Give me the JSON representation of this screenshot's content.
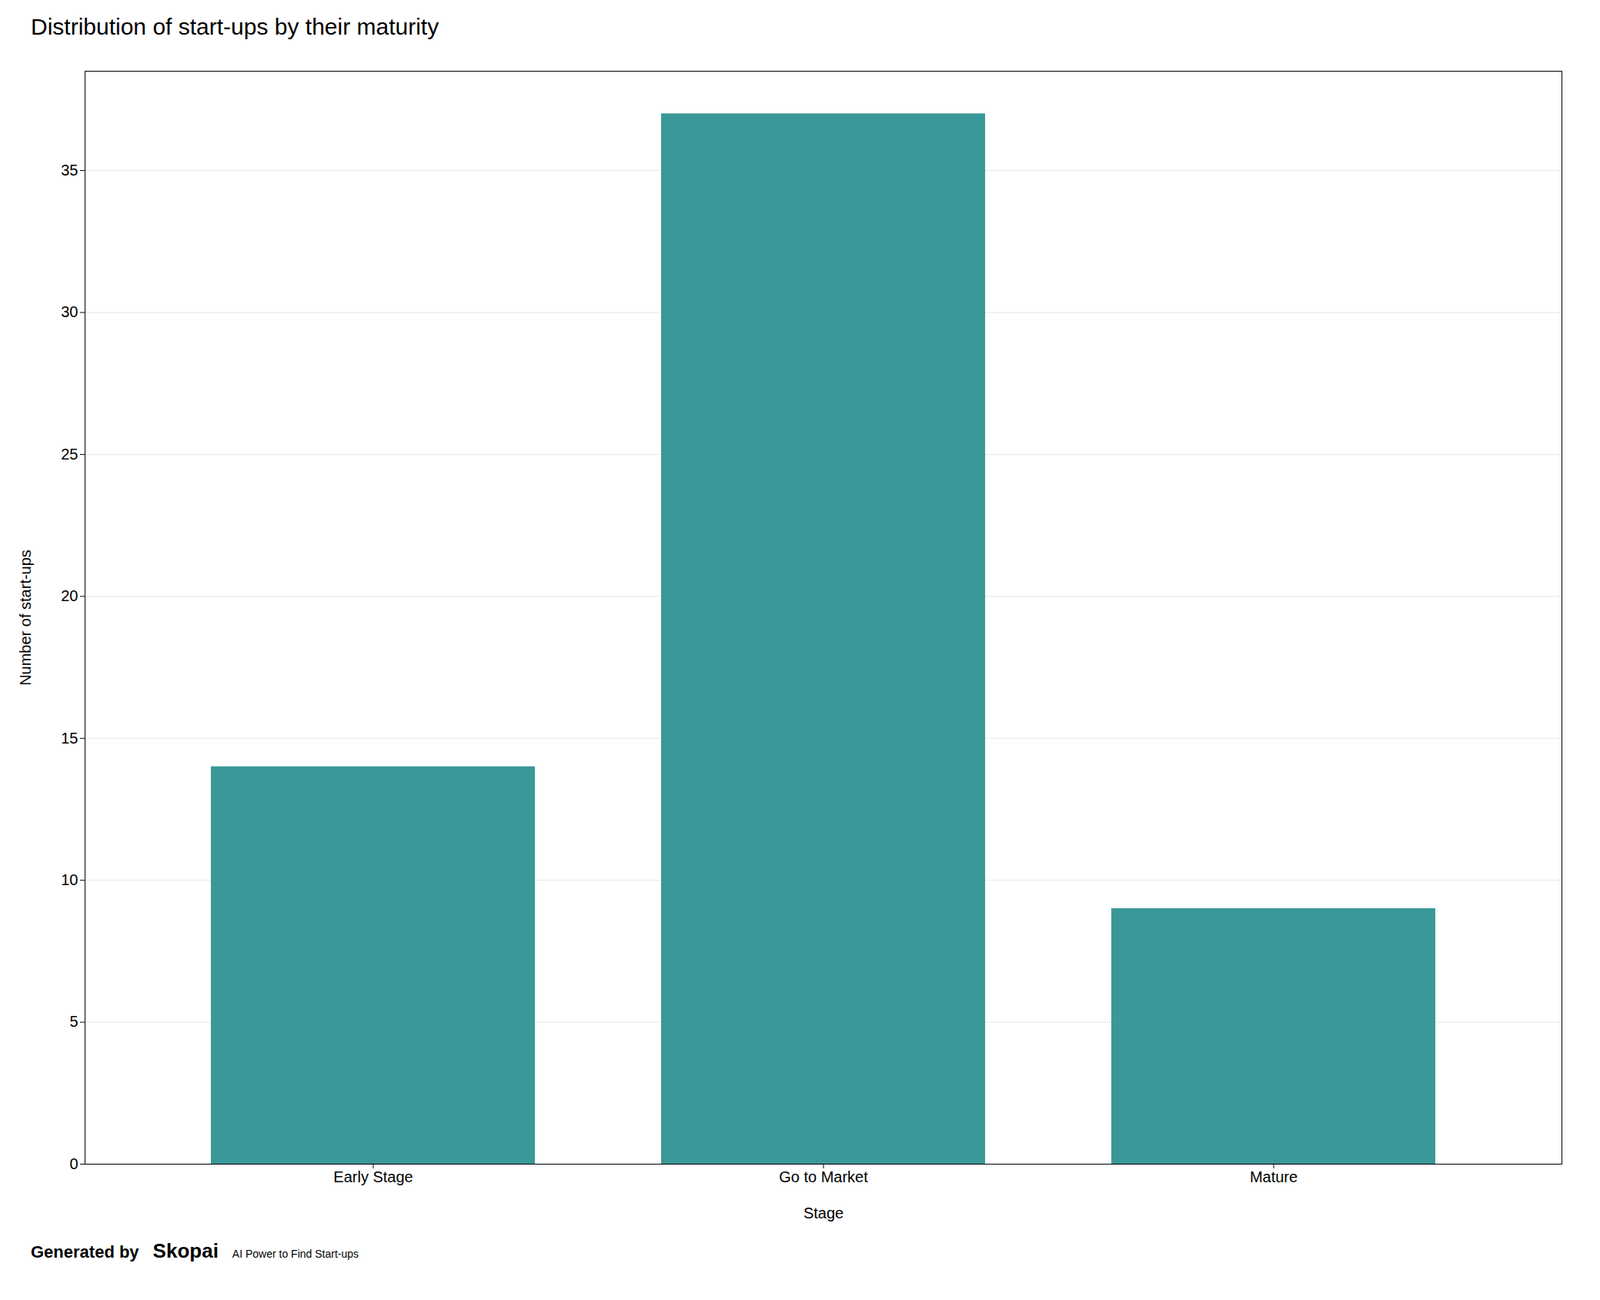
{
  "chart_data": {
    "type": "bar",
    "title": "Distribution of start-ups by their maturity",
    "xlabel": "Stage",
    "ylabel": "Number of start-ups",
    "categories": [
      "Early Stage",
      "Go to Market",
      "Mature"
    ],
    "values": [
      14,
      37,
      9
    ],
    "color": "#3a9898",
    "ylim": [
      0,
      38.5
    ],
    "yticks": [
      0,
      5,
      10,
      15,
      20,
      25,
      30,
      35
    ],
    "grid": true,
    "annotations": [
      "Generated by",
      "Skopai",
      "AI Power to Find Start-ups"
    ]
  }
}
